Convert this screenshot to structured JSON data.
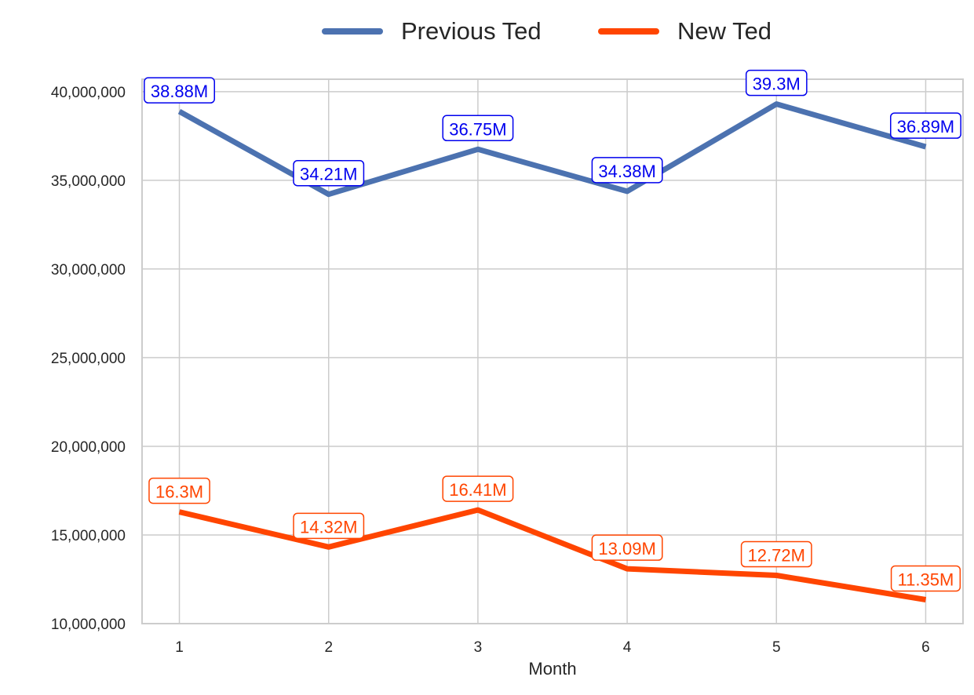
{
  "chart_data": {
    "type": "line",
    "xlabel": "Month",
    "ylabel": "",
    "categories": [
      1,
      2,
      3,
      4,
      5,
      6
    ],
    "xlim": [
      0.75,
      6.25
    ],
    "ylim": [
      10000000,
      40700000
    ],
    "y_ticks": [
      10000000,
      15000000,
      20000000,
      25000000,
      30000000,
      35000000,
      40000000
    ],
    "y_tick_labels": [
      "10,000,000",
      "15,000,000",
      "20,000,000",
      "25,000,000",
      "30,000,000",
      "35,000,000",
      "40,000,000"
    ],
    "grid": true,
    "legend_position": "top-center",
    "series": [
      {
        "name": "Previous Ted",
        "color": "#4C72B0",
        "label_color": "#0000EE",
        "values": [
          38880000,
          34210000,
          36750000,
          34380000,
          39300000,
          36890000
        ],
        "labels": [
          "38.88M",
          "34.21M",
          "36.75M",
          "34.38M",
          "39.3M",
          "36.89M"
        ]
      },
      {
        "name": "New Ted",
        "color": "#FF4500",
        "label_color": "#FF4500",
        "values": [
          16300000,
          14320000,
          16410000,
          13090000,
          12720000,
          11350000
        ],
        "labels": [
          "16.3M",
          "14.32M",
          "16.41M",
          "13.09M",
          "12.72M",
          "11.35M"
        ]
      }
    ]
  }
}
